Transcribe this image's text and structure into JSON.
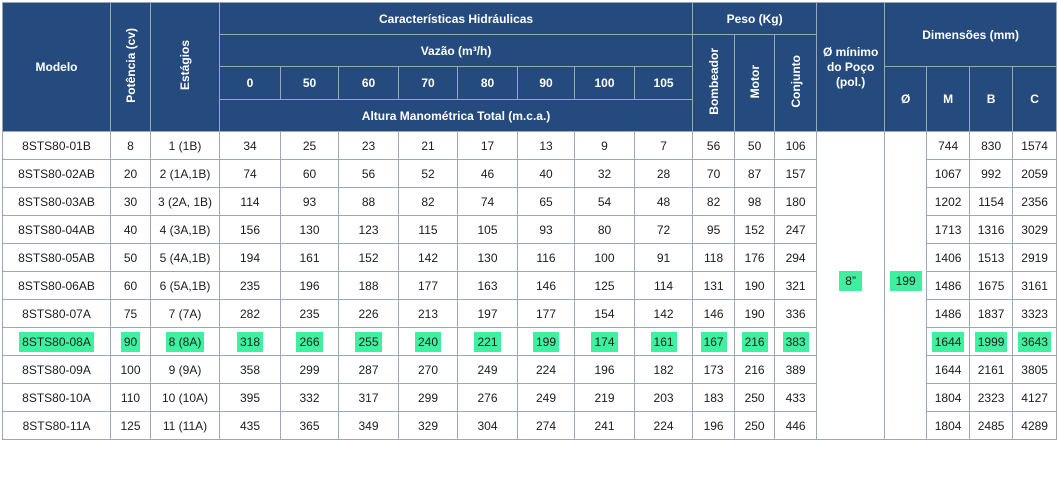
{
  "headers": {
    "modelo": "Modelo",
    "potencia": "Potência (cv)",
    "estagios": "Estágios",
    "caracteristicas": "Características Hidráulicas",
    "vazao": "Vazão (m³/h)",
    "flows": [
      "0",
      "50",
      "60",
      "70",
      "80",
      "90",
      "100",
      "105"
    ],
    "altura": "Altura Manométrica Total (m.c.a.)",
    "peso": "Peso (Kg)",
    "bombeador": "Bombeador",
    "motor": "Motor",
    "conjunto": "Conjunto",
    "diam_min": "Ø mínimo do Poço (pol.)",
    "dimensoes": "Dimensões (mm)",
    "diam": "Ø",
    "m": "M",
    "b": "B",
    "c": "C"
  },
  "shared": {
    "diam_min_poco": "8”",
    "diam": "199"
  },
  "highlight_color": "#3ff0a0",
  "rows": [
    {
      "modelo": "8STS80-01B",
      "potencia": "8",
      "estagios": "1 (1B)",
      "h": [
        "34",
        "25",
        "23",
        "21",
        "17",
        "13",
        "9",
        "7"
      ],
      "bombeador": "56",
      "motor": "50",
      "conjunto": "106",
      "m": "744",
      "b": "830",
      "c": "1574",
      "highlight": false
    },
    {
      "modelo": "8STS80-02AB",
      "potencia": "20",
      "estagios": "2 (1A,1B)",
      "h": [
        "74",
        "60",
        "56",
        "52",
        "46",
        "40",
        "32",
        "28"
      ],
      "bombeador": "70",
      "motor": "87",
      "conjunto": "157",
      "m": "1067",
      "b": "992",
      "c": "2059",
      "highlight": false
    },
    {
      "modelo": "8STS80-03AB",
      "potencia": "30",
      "estagios": "3 (2A, 1B)",
      "h": [
        "114",
        "93",
        "88",
        "82",
        "74",
        "65",
        "54",
        "48"
      ],
      "bombeador": "82",
      "motor": "98",
      "conjunto": "180",
      "m": "1202",
      "b": "1154",
      "c": "2356",
      "highlight": false
    },
    {
      "modelo": "8STS80-04AB",
      "potencia": "40",
      "estagios": "4 (3A,1B)",
      "h": [
        "156",
        "130",
        "123",
        "115",
        "105",
        "93",
        "80",
        "72"
      ],
      "bombeador": "95",
      "motor": "152",
      "conjunto": "247",
      "m": "1713",
      "b": "1316",
      "c": "3029",
      "highlight": false
    },
    {
      "modelo": "8STS80-05AB",
      "potencia": "50",
      "estagios": "5 (4A,1B)",
      "h": [
        "194",
        "161",
        "152",
        "142",
        "130",
        "116",
        "100",
        "91"
      ],
      "bombeador": "118",
      "motor": "176",
      "conjunto": "294",
      "m": "1406",
      "b": "1513",
      "c": "2919",
      "highlight": false
    },
    {
      "modelo": "8STS80-06AB",
      "potencia": "60",
      "estagios": "6 (5A,1B)",
      "h": [
        "235",
        "196",
        "188",
        "177",
        "163",
        "146",
        "125",
        "114"
      ],
      "bombeador": "131",
      "motor": "190",
      "conjunto": "321",
      "m": "1486",
      "b": "1675",
      "c": "3161",
      "highlight": false
    },
    {
      "modelo": "8STS80-07A",
      "potencia": "75",
      "estagios": "7 (7A)",
      "h": [
        "282",
        "235",
        "226",
        "213",
        "197",
        "177",
        "154",
        "142"
      ],
      "bombeador": "146",
      "motor": "190",
      "conjunto": "336",
      "m": "1486",
      "b": "1837",
      "c": "3323",
      "highlight": false
    },
    {
      "modelo": "8STS80-08A",
      "potencia": "90",
      "estagios": "8 (8A)",
      "h": [
        "318",
        "266",
        "255",
        "240",
        "221",
        "199",
        "174",
        "161"
      ],
      "bombeador": "167",
      "motor": "216",
      "conjunto": "383",
      "m": "1644",
      "b": "1999",
      "c": "3643",
      "highlight": true
    },
    {
      "modelo": "8STS80-09A",
      "potencia": "100",
      "estagios": "9 (9A)",
      "h": [
        "358",
        "299",
        "287",
        "270",
        "249",
        "224",
        "196",
        "182"
      ],
      "bombeador": "173",
      "motor": "216",
      "conjunto": "389",
      "m": "1644",
      "b": "2161",
      "c": "3805",
      "highlight": false
    },
    {
      "modelo": "8STS80-10A",
      "potencia": "110",
      "estagios": "10 (10A)",
      "h": [
        "395",
        "332",
        "317",
        "299",
        "276",
        "249",
        "219",
        "203"
      ],
      "bombeador": "183",
      "motor": "250",
      "conjunto": "433",
      "m": "1804",
      "b": "2323",
      "c": "4127",
      "highlight": false
    },
    {
      "modelo": "8STS80-11A",
      "potencia": "125",
      "estagios": "11 (11A)",
      "h": [
        "435",
        "365",
        "349",
        "329",
        "304",
        "274",
        "241",
        "224"
      ],
      "bombeador": "196",
      "motor": "250",
      "conjunto": "446",
      "m": "1804",
      "b": "2485",
      "c": "4289",
      "highlight": false
    }
  ]
}
